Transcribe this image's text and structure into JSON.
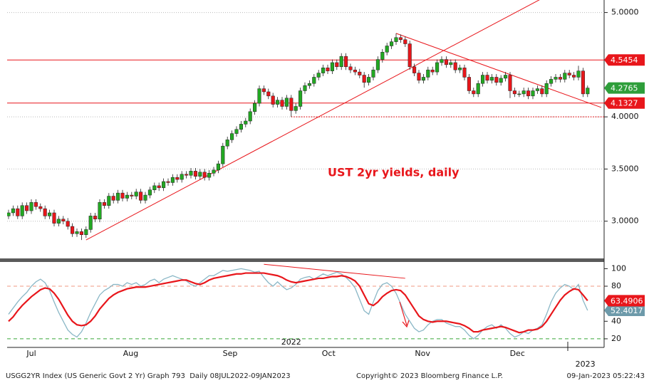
{
  "chart_data": [
    {
      "type": "candlestick",
      "title": "UST 2yr yields, daily",
      "open": [
        3.05,
        3.08,
        3.12,
        3.05,
        3.15,
        3.1,
        3.18,
        3.14,
        3.12,
        3.05,
        3.08,
        2.98,
        3.02,
        3.0,
        2.95,
        2.88,
        2.9,
        2.87,
        2.92,
        3.05,
        3.02,
        3.18,
        3.15,
        3.24,
        3.2,
        3.27,
        3.22,
        3.25,
        3.24,
        3.28,
        3.2,
        3.25,
        3.3,
        3.34,
        3.32,
        3.38,
        3.37,
        3.42,
        3.4,
        3.45,
        3.44,
        3.48,
        3.43,
        3.47,
        3.42,
        3.46,
        3.49,
        3.55,
        3.72,
        3.78,
        3.84,
        3.88,
        3.93,
        3.96,
        4.05,
        4.13,
        4.27,
        4.24,
        4.2,
        4.12,
        4.16,
        4.1,
        4.18,
        4.06,
        4.1,
        4.25,
        4.3,
        4.32,
        4.38,
        4.42,
        4.47,
        4.44,
        4.52,
        4.48,
        4.58,
        4.48,
        4.45,
        4.43,
        4.4,
        4.33,
        4.38,
        4.45,
        4.55,
        4.62,
        4.68,
        4.72,
        4.76,
        4.74,
        4.7,
        4.48,
        4.42,
        4.35,
        4.38,
        4.45,
        4.43,
        4.52,
        4.55,
        4.5,
        4.52,
        4.45,
        4.47,
        4.38,
        4.25,
        4.22,
        4.32,
        4.4,
        4.35,
        4.38,
        4.33,
        4.37,
        4.4,
        4.25,
        4.22,
        4.22,
        4.25,
        4.2,
        4.25,
        4.27,
        4.22,
        4.32,
        4.36,
        4.38,
        4.36,
        4.42,
        4.4,
        4.38,
        4.44,
        4.22
      ],
      "high": [
        3.11,
        3.15,
        3.15,
        3.18,
        3.18,
        3.21,
        3.21,
        3.17,
        3.15,
        3.11,
        3.11,
        3.05,
        3.05,
        3.03,
        2.98,
        2.93,
        2.93,
        2.95,
        3.08,
        3.08,
        3.21,
        3.21,
        3.27,
        3.27,
        3.3,
        3.3,
        3.28,
        3.28,
        3.31,
        3.31,
        3.28,
        3.33,
        3.37,
        3.37,
        3.41,
        3.41,
        3.45,
        3.45,
        3.48,
        3.48,
        3.51,
        3.51,
        3.5,
        3.5,
        3.49,
        3.52,
        3.58,
        3.75,
        3.81,
        3.87,
        3.91,
        3.96,
        3.99,
        4.08,
        4.16,
        4.3,
        4.3,
        4.27,
        4.23,
        4.19,
        4.19,
        4.21,
        4.21,
        4.13,
        4.28,
        4.33,
        4.35,
        4.41,
        4.45,
        4.5,
        4.5,
        4.55,
        4.55,
        4.61,
        4.61,
        4.51,
        4.48,
        4.46,
        4.43,
        4.41,
        4.48,
        4.58,
        4.65,
        4.71,
        4.75,
        4.8,
        4.79,
        4.77,
        4.73,
        4.51,
        4.45,
        4.41,
        4.48,
        4.48,
        4.55,
        4.58,
        4.58,
        4.55,
        4.55,
        4.5,
        4.5,
        4.41,
        4.28,
        4.35,
        4.43,
        4.43,
        4.41,
        4.41,
        4.4,
        4.43,
        4.43,
        4.28,
        4.25,
        4.28,
        4.28,
        4.28,
        4.3,
        4.3,
        4.35,
        4.39,
        4.41,
        4.41,
        4.45,
        4.45,
        4.43,
        4.49,
        4.47,
        4.3
      ],
      "low": [
        3.02,
        3.05,
        3.02,
        3.02,
        3.07,
        3.07,
        3.11,
        3.09,
        3.02,
        3.02,
        2.95,
        2.95,
        2.97,
        2.92,
        2.85,
        2.85,
        2.82,
        2.84,
        2.89,
        2.99,
        2.99,
        3.12,
        3.12,
        3.17,
        3.17,
        3.19,
        3.19,
        3.21,
        3.21,
        3.17,
        3.17,
        3.22,
        3.27,
        3.29,
        3.29,
        3.34,
        3.34,
        3.37,
        3.37,
        3.41,
        3.41,
        3.4,
        3.4,
        3.39,
        3.39,
        3.43,
        3.46,
        3.52,
        3.69,
        3.75,
        3.81,
        3.85,
        3.9,
        3.93,
        4.02,
        4.1,
        4.21,
        4.17,
        4.09,
        4.09,
        4.07,
        4.07,
        4.0,
        4.03,
        4.07,
        4.22,
        4.27,
        4.29,
        4.35,
        4.39,
        4.41,
        4.41,
        4.45,
        4.45,
        4.45,
        4.42,
        4.4,
        4.37,
        4.28,
        4.3,
        4.35,
        4.42,
        4.52,
        4.59,
        4.65,
        4.69,
        4.71,
        4.67,
        4.45,
        4.39,
        4.32,
        4.32,
        4.35,
        4.4,
        4.4,
        4.49,
        4.47,
        4.47,
        4.42,
        4.42,
        4.35,
        4.22,
        4.19,
        4.19,
        4.29,
        4.32,
        4.32,
        4.3,
        4.3,
        4.34,
        4.18,
        4.19,
        4.19,
        4.19,
        4.17,
        4.17,
        4.22,
        4.19,
        4.19,
        4.29,
        4.33,
        4.33,
        4.33,
        4.37,
        4.35,
        4.35,
        4.19,
        4.19
      ],
      "close": [
        3.08,
        3.12,
        3.05,
        3.15,
        3.1,
        3.18,
        3.14,
        3.12,
        3.05,
        3.08,
        2.98,
        3.02,
        3.0,
        2.95,
        2.88,
        2.9,
        2.87,
        2.92,
        3.05,
        3.02,
        3.18,
        3.15,
        3.24,
        3.2,
        3.27,
        3.22,
        3.25,
        3.24,
        3.28,
        3.2,
        3.25,
        3.3,
        3.34,
        3.32,
        3.38,
        3.37,
        3.42,
        3.4,
        3.45,
        3.44,
        3.48,
        3.43,
        3.47,
        3.42,
        3.46,
        3.49,
        3.55,
        3.72,
        3.78,
        3.84,
        3.88,
        3.93,
        3.96,
        4.05,
        4.13,
        4.27,
        4.24,
        4.2,
        4.12,
        4.16,
        4.1,
        4.18,
        4.06,
        4.1,
        4.25,
        4.3,
        4.32,
        4.38,
        4.42,
        4.47,
        4.44,
        4.52,
        4.48,
        4.58,
        4.48,
        4.45,
        4.43,
        4.4,
        4.33,
        4.38,
        4.45,
        4.55,
        4.62,
        4.68,
        4.72,
        4.76,
        4.74,
        4.7,
        4.48,
        4.42,
        4.35,
        4.38,
        4.45,
        4.43,
        4.52,
        4.55,
        4.5,
        4.52,
        4.45,
        4.47,
        4.38,
        4.25,
        4.22,
        4.32,
        4.4,
        4.35,
        4.38,
        4.33,
        4.37,
        4.4,
        4.25,
        4.22,
        4.22,
        4.25,
        4.2,
        4.25,
        4.27,
        4.22,
        4.32,
        4.36,
        4.38,
        4.36,
        4.42,
        4.4,
        4.38,
        4.44,
        4.22,
        4.2765
      ],
      "up_color": "#22a822",
      "down_color": "#e8161b",
      "last_color": "#2e9e3a",
      "ylim": [
        2.65,
        5.12
      ],
      "yticks": [
        {
          "value": 3,
          "label": "3.0000"
        },
        {
          "value": 3.5,
          "label": "3.5000"
        },
        {
          "value": 4,
          "label": "4.0000"
        },
        {
          "value": 5,
          "label": "5.0000"
        }
      ],
      "grid": true,
      "levels": [
        4.5454,
        4.1327
      ],
      "level_color": "#e8161b",
      "support": {
        "value": 4,
        "from": 62
      },
      "trendlines": [
        {
          "points": [
            [
              17,
              2.82
            ],
            [
              125,
              5.32
            ]
          ]
        },
        {
          "points": [
            [
              85,
              4.8
            ],
            [
              130,
              4.09
            ]
          ]
        }
      ]
    },
    {
      "type": "line",
      "series": [
        {
          "color": "#e8161b",
          "values": [
            40,
            45,
            52,
            58,
            63,
            68,
            72,
            76,
            78,
            77,
            72,
            65,
            56,
            47,
            40,
            36,
            35,
            36,
            40,
            46,
            54,
            60,
            66,
            70,
            73,
            75,
            77,
            78,
            79,
            79,
            79,
            80,
            81,
            82,
            83,
            84,
            85,
            86,
            87,
            87,
            85,
            83,
            82,
            84,
            87,
            89,
            90,
            91,
            92,
            93,
            94,
            94,
            95,
            95,
            95,
            95,
            95,
            94,
            93,
            92,
            90,
            87,
            85,
            84,
            85,
            86,
            87,
            88,
            89,
            89,
            90,
            91,
            91,
            92,
            91,
            89,
            86,
            80,
            70,
            60,
            58,
            62,
            68,
            72,
            75,
            76,
            75,
            70,
            62,
            54,
            46,
            42,
            40,
            39,
            40,
            40,
            40,
            39,
            38,
            37,
            35,
            32,
            28,
            28,
            30,
            31,
            32,
            33,
            34,
            33,
            31,
            29,
            27,
            28,
            30,
            30,
            31,
            34,
            40,
            48,
            56,
            64,
            70,
            74,
            77,
            76,
            70,
            63.4906
          ]
        },
        {
          "color": "#8ab7c6",
          "values": [
            48,
            55,
            62,
            68,
            73,
            80,
            85,
            88,
            84,
            75,
            62,
            50,
            40,
            30,
            25,
            22,
            28,
            38,
            50,
            60,
            70,
            75,
            78,
            82,
            82,
            80,
            84,
            82,
            84,
            80,
            82,
            86,
            88,
            84,
            88,
            90,
            92,
            90,
            88,
            86,
            82,
            80,
            84,
            88,
            92,
            92,
            95,
            98,
            97,
            98,
            99,
            100,
            99,
            98,
            96,
            97,
            90,
            84,
            80,
            85,
            80,
            76,
            78,
            82,
            88,
            90,
            91,
            88,
            91,
            94,
            92,
            94,
            96,
            94,
            90,
            85,
            78,
            65,
            52,
            48,
            62,
            75,
            82,
            84,
            80,
            72,
            60,
            48,
            40,
            32,
            28,
            30,
            36,
            40,
            42,
            42,
            38,
            36,
            34,
            34,
            30,
            24,
            20,
            24,
            30,
            34,
            36,
            32,
            36,
            32,
            26,
            22,
            24,
            28,
            26,
            30,
            32,
            36,
            48,
            62,
            72,
            78,
            82,
            80,
            76,
            82,
            64,
            52.4017
          ]
        }
      ],
      "ylim": [
        11,
        106
      ],
      "yticks": [
        20,
        40,
        80,
        100
      ],
      "hlines": [
        {
          "value": 80,
          "color": "#f29a80"
        },
        {
          "value": 20,
          "color": "#3aa63a"
        }
      ],
      "trendlines": [
        {
          "points": [
            [
              56,
              105
            ],
            [
              87,
              89
            ]
          ]
        }
      ],
      "xticks": [
        {
          "value": 5,
          "label": "Jul"
        },
        {
          "value": 26.8,
          "label": "Aug"
        },
        {
          "value": 48.6,
          "label": "Sep"
        },
        {
          "value": 70.2,
          "label": "Oct"
        },
        {
          "value": 90.8,
          "label": "Nov"
        },
        {
          "value": 111.6,
          "label": "Dec"
        }
      ],
      "year_labels": [
        {
          "value": 62,
          "label": "2022"
        },
        {
          "value": 126.5,
          "label": "2023"
        }
      ]
    }
  ],
  "footer": {
    "left": "USGG2YR Index (US Generic Govt 2 Yr) Graph 793  Daily 08JUL2022-09JAN2023",
    "center": "Copyright© 2023 Bloomberg Finance L.P.",
    "right": "09-Jan-2023 05:22:43"
  }
}
